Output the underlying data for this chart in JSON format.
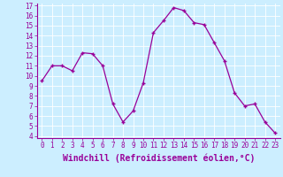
{
  "x": [
    0,
    1,
    2,
    3,
    4,
    5,
    6,
    7,
    8,
    9,
    10,
    11,
    12,
    13,
    14,
    15,
    16,
    17,
    18,
    19,
    20,
    21,
    22,
    23
  ],
  "y": [
    9.5,
    11.0,
    11.0,
    10.5,
    12.3,
    12.2,
    11.0,
    7.2,
    5.4,
    6.5,
    9.3,
    14.3,
    15.5,
    16.8,
    16.5,
    15.3,
    15.1,
    13.3,
    11.5,
    8.3,
    7.0,
    7.2,
    5.4,
    4.3
  ],
  "line_color": "#990099",
  "marker": "+",
  "marker_size": 3,
  "xlabel": "Windchill (Refroidissement éolien,°C)",
  "xlabel_color": "#990099",
  "bg_color": "#cceeff",
  "grid_color": "#ffffff",
  "tick_color": "#990099",
  "ylim": [
    3.8,
    17.2
  ],
  "xlim": [
    -0.5,
    23.5
  ],
  "yticks": [
    4,
    5,
    6,
    7,
    8,
    9,
    10,
    11,
    12,
    13,
    14,
    15,
    16,
    17
  ],
  "xticks": [
    0,
    1,
    2,
    3,
    4,
    5,
    6,
    7,
    8,
    9,
    10,
    11,
    12,
    13,
    14,
    15,
    16,
    17,
    18,
    19,
    20,
    21,
    22,
    23
  ],
  "tick_fontsize": 5.5,
  "xlabel_fontsize": 7.0
}
